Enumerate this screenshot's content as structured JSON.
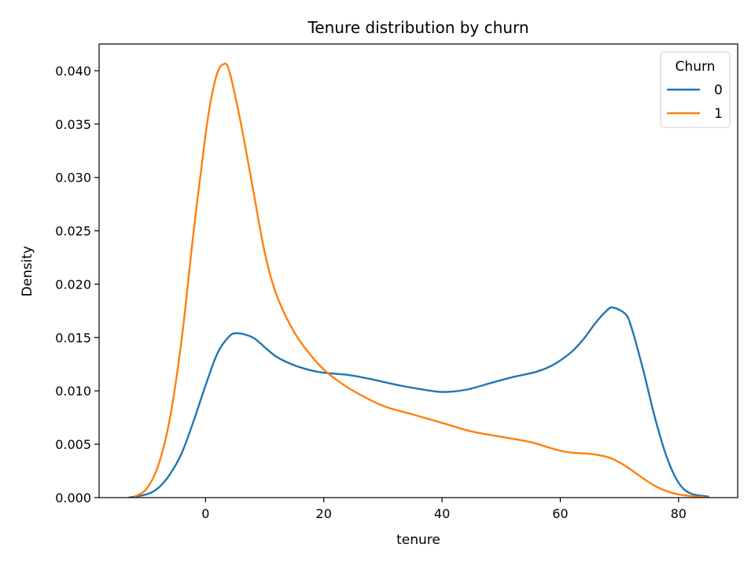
{
  "chart_data": {
    "type": "line",
    "title": "Tenure distribution by churn",
    "xlabel": "tenure",
    "ylabel": "Density",
    "xlim": [
      -18,
      90
    ],
    "ylim": [
      0,
      0.0425
    ],
    "xticks": [
      "0",
      "20",
      "40",
      "60",
      "80"
    ],
    "xtick_values": [
      0,
      20,
      40,
      60,
      80
    ],
    "yticks": [
      "0.000",
      "0.005",
      "0.010",
      "0.015",
      "0.020",
      "0.025",
      "0.030",
      "0.035",
      "0.040"
    ],
    "ytick_values": [
      0,
      0.005,
      0.01,
      0.015,
      0.02,
      0.025,
      0.03,
      0.035,
      0.04
    ],
    "grid": false,
    "legend": {
      "title": "Churn",
      "placement": "top-right"
    },
    "series": [
      {
        "name": "0",
        "color": "#1f77b4",
        "x": [
          -13,
          -10,
          -8,
          -6,
          -4,
          -2,
          0,
          2,
          4,
          5.5,
          8,
          10,
          12,
          15,
          18,
          20,
          24,
          28,
          32,
          36,
          40,
          44,
          48,
          52,
          56,
          59,
          62,
          64,
          66,
          68,
          69,
          71,
          72,
          74,
          76,
          78,
          80,
          82,
          85
        ],
        "y": [
          0.0,
          0.0003,
          0.0009,
          0.0022,
          0.0042,
          0.0072,
          0.0105,
          0.0135,
          0.0151,
          0.0154,
          0.015,
          0.0141,
          0.0132,
          0.0124,
          0.0119,
          0.0117,
          0.0115,
          0.0111,
          0.0106,
          0.0102,
          0.0099,
          0.0101,
          0.0107,
          0.0113,
          0.0118,
          0.0125,
          0.0137,
          0.0149,
          0.0164,
          0.0176,
          0.0178,
          0.0172,
          0.016,
          0.012,
          0.0075,
          0.0038,
          0.0014,
          0.0004,
          0.0001
        ]
      },
      {
        "name": "1",
        "color": "#ff7f0e",
        "x": [
          -12,
          -10,
          -8,
          -6,
          -4,
          -2,
          0,
          1,
          2,
          3,
          4,
          6,
          8,
          10,
          12,
          15,
          18,
          20,
          22,
          25,
          30,
          35,
          40,
          45,
          50,
          55,
          58,
          60,
          62,
          65,
          68,
          70,
          72,
          74,
          76,
          78,
          80,
          83,
          85
        ],
        "y": [
          0.0001,
          0.0008,
          0.003,
          0.0075,
          0.015,
          0.025,
          0.034,
          0.0375,
          0.0398,
          0.0406,
          0.04,
          0.035,
          0.029,
          0.023,
          0.019,
          0.0155,
          0.0132,
          0.012,
          0.0111,
          0.01,
          0.0086,
          0.0078,
          0.007,
          0.0062,
          0.0057,
          0.0052,
          0.0047,
          0.0044,
          0.0042,
          0.0041,
          0.0038,
          0.0033,
          0.0026,
          0.0018,
          0.0011,
          0.0006,
          0.0003,
          0.0001,
          0.0
        ]
      }
    ]
  }
}
